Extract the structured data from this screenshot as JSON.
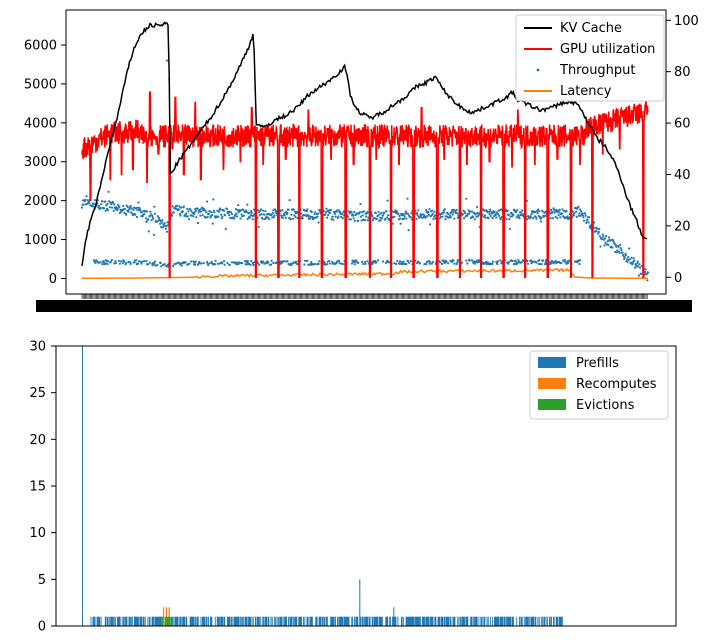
{
  "chart_data": [
    {
      "type": "line",
      "title": "",
      "xlabel": "",
      "ylabel": "",
      "ylabel_right": "",
      "ylim": [
        -400,
        6900
      ],
      "y2lim": [
        -6.5,
        104
      ],
      "yticks": [
        "0",
        "1000",
        "2000",
        "3000",
        "4000",
        "5000",
        "6000"
      ],
      "y2ticks": [
        "0",
        "20",
        "40",
        "60",
        "80",
        "100"
      ],
      "x_tick_labels_note": "dense overlapping timestamp labels (illegible)",
      "legend": {
        "position": "top-right",
        "entries": [
          "KV Cache",
          "GPU utilization",
          "Throughput",
          "Latency"
        ]
      },
      "series": [
        {
          "name": "KV Cache",
          "axis": "right",
          "color": "#000000",
          "style": "line",
          "points": [
            [
              0,
              5
            ],
            [
              0.5,
              12
            ],
            [
              1,
              18
            ],
            [
              2,
              25
            ],
            [
              3,
              33
            ],
            [
              4,
              43
            ],
            [
              5,
              52
            ],
            [
              6,
              60
            ],
            [
              7,
              70
            ],
            [
              8,
              80
            ],
            [
              9,
              88
            ],
            [
              10,
              93
            ],
            [
              11,
              96
            ],
            [
              12,
              98
            ],
            [
              13,
              98
            ],
            [
              14,
              98
            ],
            [
              15,
              99
            ],
            [
              15.3,
              98
            ],
            [
              15.6,
              40
            ],
            [
              17,
              45
            ],
            [
              19,
              51
            ],
            [
              21,
              57
            ],
            [
              23,
              63
            ],
            [
              25,
              70
            ],
            [
              27,
              78
            ],
            [
              28.5,
              85
            ],
            [
              29.5,
              90
            ],
            [
              30.3,
              95
            ],
            [
              30.8,
              60
            ],
            [
              32,
              58
            ],
            [
              34,
              61
            ],
            [
              36,
              63
            ],
            [
              38,
              66
            ],
            [
              40,
              71
            ],
            [
              42,
              74
            ],
            [
              44,
              77
            ],
            [
              45.5,
              80
            ],
            [
              46.5,
              82
            ],
            [
              47.5,
              70
            ],
            [
              49,
              64
            ],
            [
              51,
              62
            ],
            [
              53,
              64
            ],
            [
              55,
              67
            ],
            [
              57,
              70
            ],
            [
              59,
              74
            ],
            [
              61,
              76
            ],
            [
              62.5,
              78
            ],
            [
              63.5,
              74
            ],
            [
              65,
              70
            ],
            [
              67,
              66
            ],
            [
              69,
              64
            ],
            [
              71,
              66
            ],
            [
              73,
              68
            ],
            [
              75,
              70
            ],
            [
              76,
              72
            ],
            [
              77,
              69
            ],
            [
              79,
              67
            ],
            [
              81,
              65
            ],
            [
              83,
              66
            ],
            [
              85,
              68
            ],
            [
              87,
              68
            ],
            [
              88,
              66
            ],
            [
              89,
              62
            ],
            [
              90,
              58
            ],
            [
              91,
              54
            ],
            [
              92,
              52
            ],
            [
              93,
              49
            ],
            [
              94,
              45
            ],
            [
              95,
              40
            ],
            [
              96,
              33
            ],
            [
              97,
              27
            ],
            [
              98,
              22
            ],
            [
              99,
              16
            ],
            [
              100,
              15
            ]
          ]
        },
        {
          "name": "GPU utilization",
          "axis": "right",
          "color": "#ff0000",
          "style": "line",
          "baseline": 55,
          "early_baseline": [
            [
              0,
              50
            ],
            [
              5,
              56
            ],
            [
              10,
              57
            ],
            [
              100,
              55
            ]
          ],
          "late_baseline": [
            [
              89,
              58
            ],
            [
              94,
              61
            ],
            [
              99,
              64
            ],
            [
              100,
              65
            ]
          ],
          "dips_to_zero": [
            15.5,
            30.7,
            34.7,
            38.4,
            42.4,
            46.6,
            50.9,
            54.6,
            58.6,
            62.8,
            66.8,
            70.5,
            74.5,
            78.3,
            82.3,
            86.4,
            90.2,
            99.2
          ],
          "partial_dips": [
            [
              1.5,
              30
            ],
            [
              5,
              38
            ],
            [
              7,
              40
            ],
            [
              9,
              42
            ],
            [
              11.5,
              37
            ],
            [
              13.5,
              48
            ],
            [
              16,
              50
            ],
            [
              18,
              40
            ],
            [
              21,
              38
            ],
            [
              25,
              42
            ],
            [
              28,
              45
            ],
            [
              32,
              44
            ],
            [
              36,
              46
            ],
            [
              40,
              44
            ],
            [
              44,
              46
            ],
            [
              48,
              44
            ],
            [
              52,
              46
            ],
            [
              56,
              44
            ],
            [
              60,
              46
            ],
            [
              64,
              46
            ],
            [
              68,
              44
            ],
            [
              72,
              45
            ],
            [
              76,
              43
            ],
            [
              80,
              44
            ],
            [
              84,
              46
            ],
            [
              88,
              44
            ],
            [
              92,
              48
            ],
            [
              95,
              50
            ]
          ],
          "spikes": [
            [
              12,
              72
            ],
            [
              16.5,
              70
            ],
            [
              20,
              68
            ],
            [
              30,
              66
            ],
            [
              40,
              65
            ],
            [
              60,
              66
            ],
            [
              77,
              65
            ],
            [
              99.5,
              67
            ]
          ]
        },
        {
          "name": "Throughput",
          "axis": "left",
          "color": "#1f77b4",
          "style": "scatter",
          "upper_band": [
            [
              0,
              1950
            ],
            [
              5,
              1850
            ],
            [
              10,
              1700
            ],
            [
              13,
              1550
            ],
            [
              15,
              1300
            ],
            [
              16,
              1750
            ],
            [
              20,
              1700
            ],
            [
              30,
              1650
            ],
            [
              40,
              1650
            ],
            [
              50,
              1600
            ],
            [
              60,
              1650
            ],
            [
              70,
              1650
            ],
            [
              80,
              1650
            ],
            [
              86,
              1650
            ],
            [
              88,
              1750
            ],
            [
              89,
              1550
            ],
            [
              92,
              1100
            ],
            [
              95,
              700
            ],
            [
              98,
              350
            ],
            [
              100,
              50
            ]
          ],
          "lower_band": [
            [
              2,
              420
            ],
            [
              10,
              420
            ],
            [
              15,
              350
            ],
            [
              20,
              400
            ],
            [
              40,
              400
            ],
            [
              60,
              420
            ],
            [
              80,
              420
            ],
            [
              88,
              420
            ]
          ],
          "outliers": [
            [
              14.7,
              6550
            ],
            [
              15,
              5600
            ],
            [
              15.4,
              5100
            ]
          ]
        },
        {
          "name": "Latency",
          "axis": "left",
          "color": "#ff7f0e",
          "style": "line",
          "points": [
            [
              0,
              5
            ],
            [
              10,
              10
            ],
            [
              20,
              30
            ],
            [
              30,
              60
            ],
            [
              40,
              80
            ],
            [
              50,
              100
            ],
            [
              55,
              110
            ],
            [
              56,
              150
            ],
            [
              60,
              170
            ],
            [
              70,
              180
            ],
            [
              80,
              190
            ],
            [
              86,
              200
            ],
            [
              87,
              40
            ],
            [
              90,
              10
            ],
            [
              100,
              5
            ]
          ]
        }
      ]
    },
    {
      "type": "bar",
      "title": "",
      "xlabel": "",
      "ylabel": "",
      "ylim": [
        0,
        30
      ],
      "yticks": [
        "0",
        "5",
        "10",
        "15",
        "20",
        "25",
        "30"
      ],
      "legend": {
        "position": "top-right",
        "entries": [
          "Prefills",
          "Recomputes",
          "Evictions"
        ]
      },
      "series": [
        {
          "name": "Prefills",
          "color": "#1f77b4",
          "points": [
            [
              0,
              30
            ],
            [
              49,
              5
            ],
            [
              55,
              2
            ]
          ],
          "baseline_value": 1,
          "baseline_ranges": [
            [
              1.5,
              85
            ]
          ]
        },
        {
          "name": "Recomputes",
          "color": "#ff7f0e",
          "points": [
            [
              14.3,
              2
            ],
            [
              14.8,
              2
            ],
            [
              15.3,
              2
            ]
          ]
        },
        {
          "name": "Evictions",
          "color": "#2ca02c",
          "points": [
            [
              14,
              1
            ],
            [
              14.6,
              1
            ],
            [
              15.1,
              1
            ],
            [
              15.6,
              1
            ]
          ]
        }
      ]
    }
  ]
}
